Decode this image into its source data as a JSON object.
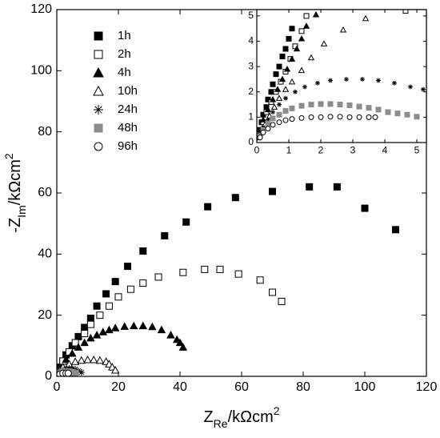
{
  "chart_data": [
    {
      "type": "scatter",
      "x_label": [
        "Z",
        "Re",
        "/kΩcm",
        "2"
      ],
      "y_label": [
        "-Z",
        "Im",
        "/kΩcm",
        "2"
      ],
      "xlim": [
        0,
        120
      ],
      "xticks": [
        0,
        20,
        40,
        60,
        80,
        100,
        120
      ],
      "ylim": [
        0,
        120
      ],
      "yticks": [
        0,
        20,
        40,
        60,
        80,
        100,
        120
      ],
      "legend": "upper left",
      "series": [
        {
          "name": "1h",
          "marker": "square-filled",
          "color": "#000000",
          "x": [
            1,
            2,
            3,
            5,
            7,
            9,
            11,
            13,
            16,
            19,
            23,
            28,
            35,
            42,
            49,
            58,
            70,
            82,
            91,
            100,
            110
          ],
          "values": [
            3,
            5,
            7,
            10,
            13,
            16,
            19,
            23,
            27,
            31,
            36,
            41,
            46,
            50.5,
            55.5,
            58.5,
            60.5,
            62,
            62,
            55,
            48
          ]
        },
        {
          "name": "2h",
          "marker": "square-open",
          "color": "#000000",
          "x": [
            2,
            4,
            6,
            9,
            11,
            14,
            17,
            20,
            24,
            28,
            33,
            41,
            48,
            53,
            59,
            66,
            70,
            73
          ],
          "values": [
            5,
            8,
            11,
            14,
            17,
            20,
            23,
            26,
            28.5,
            30.5,
            32.5,
            34,
            35,
            35,
            33.5,
            31.5,
            27.5,
            24.5
          ]
        },
        {
          "name": "4h",
          "marker": "triangle-filled",
          "color": "#000000",
          "x": [
            1,
            3,
            5,
            7,
            9,
            11,
            13,
            15,
            17,
            19,
            22,
            25,
            28,
            31,
            34,
            37,
            39,
            40,
            41
          ],
          "values": [
            3,
            5.5,
            7.5,
            9.5,
            11,
            12.5,
            13.5,
            14.5,
            15.2,
            15.8,
            16.3,
            16.5,
            16.5,
            16.2,
            15.2,
            13.5,
            12,
            11,
            9.5
          ]
        },
        {
          "name": "10h",
          "marker": "triangle-open",
          "color": "#000000",
          "x": [
            1,
            2,
            4,
            6,
            8,
            10,
            12,
            14,
            16,
            17,
            18,
            19
          ],
          "values": [
            2,
            3,
            4,
            4.8,
            5.2,
            5.4,
            5.4,
            5.2,
            4.8,
            4,
            3,
            2
          ]
        },
        {
          "name": "24h",
          "marker": "star",
          "color": "#000000",
          "x": [
            1,
            2,
            3,
            4,
            5,
            6,
            7,
            8
          ],
          "values": [
            1.5,
            2,
            2.4,
            2.6,
            2.5,
            2.3,
            1.8,
            1.3
          ]
        },
        {
          "name": "48h",
          "marker": "square-filled",
          "color": "#8c8c8c",
          "x": [
            1,
            2,
            3,
            4,
            5,
            6
          ],
          "values": [
            1,
            1.4,
            1.5,
            1.4,
            1.2,
            1
          ]
        },
        {
          "name": "96h",
          "marker": "circle-open",
          "color": "#000000",
          "x": [
            1,
            2,
            3,
            3.7
          ],
          "values": [
            0.7,
            1,
            1,
            1
          ]
        }
      ]
    },
    {
      "type": "scatter",
      "xlim": [
        0,
        5.3
      ],
      "xticks": [
        0,
        1,
        2,
        3,
        4,
        5
      ],
      "ylim": [
        0,
        5.25
      ],
      "yticks": [
        0,
        1,
        2,
        3,
        4,
        5
      ],
      "series": [
        {
          "marker": "square-filled",
          "color": "#000000",
          "x": [
            0.05,
            0.1,
            0.15,
            0.2,
            0.3,
            0.35,
            0.45,
            0.5,
            0.6,
            0.7,
            0.8,
            0.9,
            1,
            1.1
          ],
          "values": [
            0.2,
            0.5,
            0.8,
            1.1,
            1.4,
            1.7,
            2,
            2.3,
            2.7,
            3,
            3.4,
            3.7,
            4.1,
            4.5
          ]
        },
        {
          "marker": "square-open",
          "color": "#000000",
          "x": [
            0.1,
            0.2,
            0.3,
            0.45,
            0.6,
            0.75,
            0.9,
            1.05,
            1.2,
            1.4,
            1.55,
            4.65
          ],
          "values": [
            0.4,
            0.8,
            1.2,
            1.6,
            2,
            2.4,
            2.8,
            3.3,
            3.8,
            4.4,
            5,
            5.2
          ]
        },
        {
          "marker": "triangle-filled",
          "color": "#000000",
          "x": [
            0.1,
            0.2,
            0.35,
            0.5,
            0.65,
            0.8,
            0.95,
            1.1,
            1.25,
            1.4,
            1.55,
            1.85
          ],
          "values": [
            0.5,
            0.9,
            1.3,
            1.7,
            2.1,
            2.5,
            2.9,
            3.3,
            3.7,
            4.1,
            4.6,
            5.05
          ]
        },
        {
          "marker": "triangle-open",
          "color": "#000000",
          "x": [
            0.1,
            0.25,
            0.4,
            0.55,
            0.7,
            0.9,
            1.1,
            1.4,
            1.7,
            2.1,
            2.7,
            3.4
          ],
          "values": [
            0.35,
            0.7,
            1.05,
            1.4,
            1.75,
            2.1,
            2.4,
            2.85,
            3.35,
            3.9,
            4.45,
            4.9
          ]
        },
        {
          "marker": "star",
          "color": "#000000",
          "x": [
            0.1,
            0.2,
            0.35,
            0.5,
            0.7,
            0.9,
            1.2,
            1.5,
            1.9,
            2.3,
            2.8,
            3.3,
            3.8,
            4.3,
            4.8,
            5.2
          ],
          "values": [
            0.3,
            0.6,
            0.9,
            1.2,
            1.5,
            1.75,
            2,
            2.2,
            2.35,
            2.45,
            2.5,
            2.5,
            2.45,
            2.35,
            2.2,
            2.1
          ]
        },
        {
          "marker": "square-filled",
          "color": "#8c8c8c",
          "x": [
            0.1,
            0.2,
            0.35,
            0.5,
            0.7,
            0.9,
            1.1,
            1.4,
            1.7,
            2,
            2.3,
            2.6,
            2.9,
            3.2,
            3.5,
            3.8,
            4.1,
            4.4,
            4.7,
            5
          ],
          "values": [
            0.25,
            0.5,
            0.75,
            0.95,
            1.1,
            1.25,
            1.35,
            1.45,
            1.5,
            1.52,
            1.52,
            1.5,
            1.47,
            1.42,
            1.37,
            1.3,
            1.2,
            1.15,
            1.1,
            1.02
          ]
        },
        {
          "marker": "circle-open",
          "color": "#000000",
          "x": [
            0.1,
            0.2,
            0.35,
            0.5,
            0.7,
            0.9,
            1.1,
            1.4,
            1.7,
            2,
            2.3,
            2.6,
            2.9,
            3.2,
            3.5,
            3.7
          ],
          "values": [
            0.2,
            0.4,
            0.55,
            0.7,
            0.8,
            0.88,
            0.93,
            0.97,
            1,
            1,
            1.02,
            1.02,
            1,
            1,
            1,
            1
          ]
        }
      ]
    }
  ]
}
